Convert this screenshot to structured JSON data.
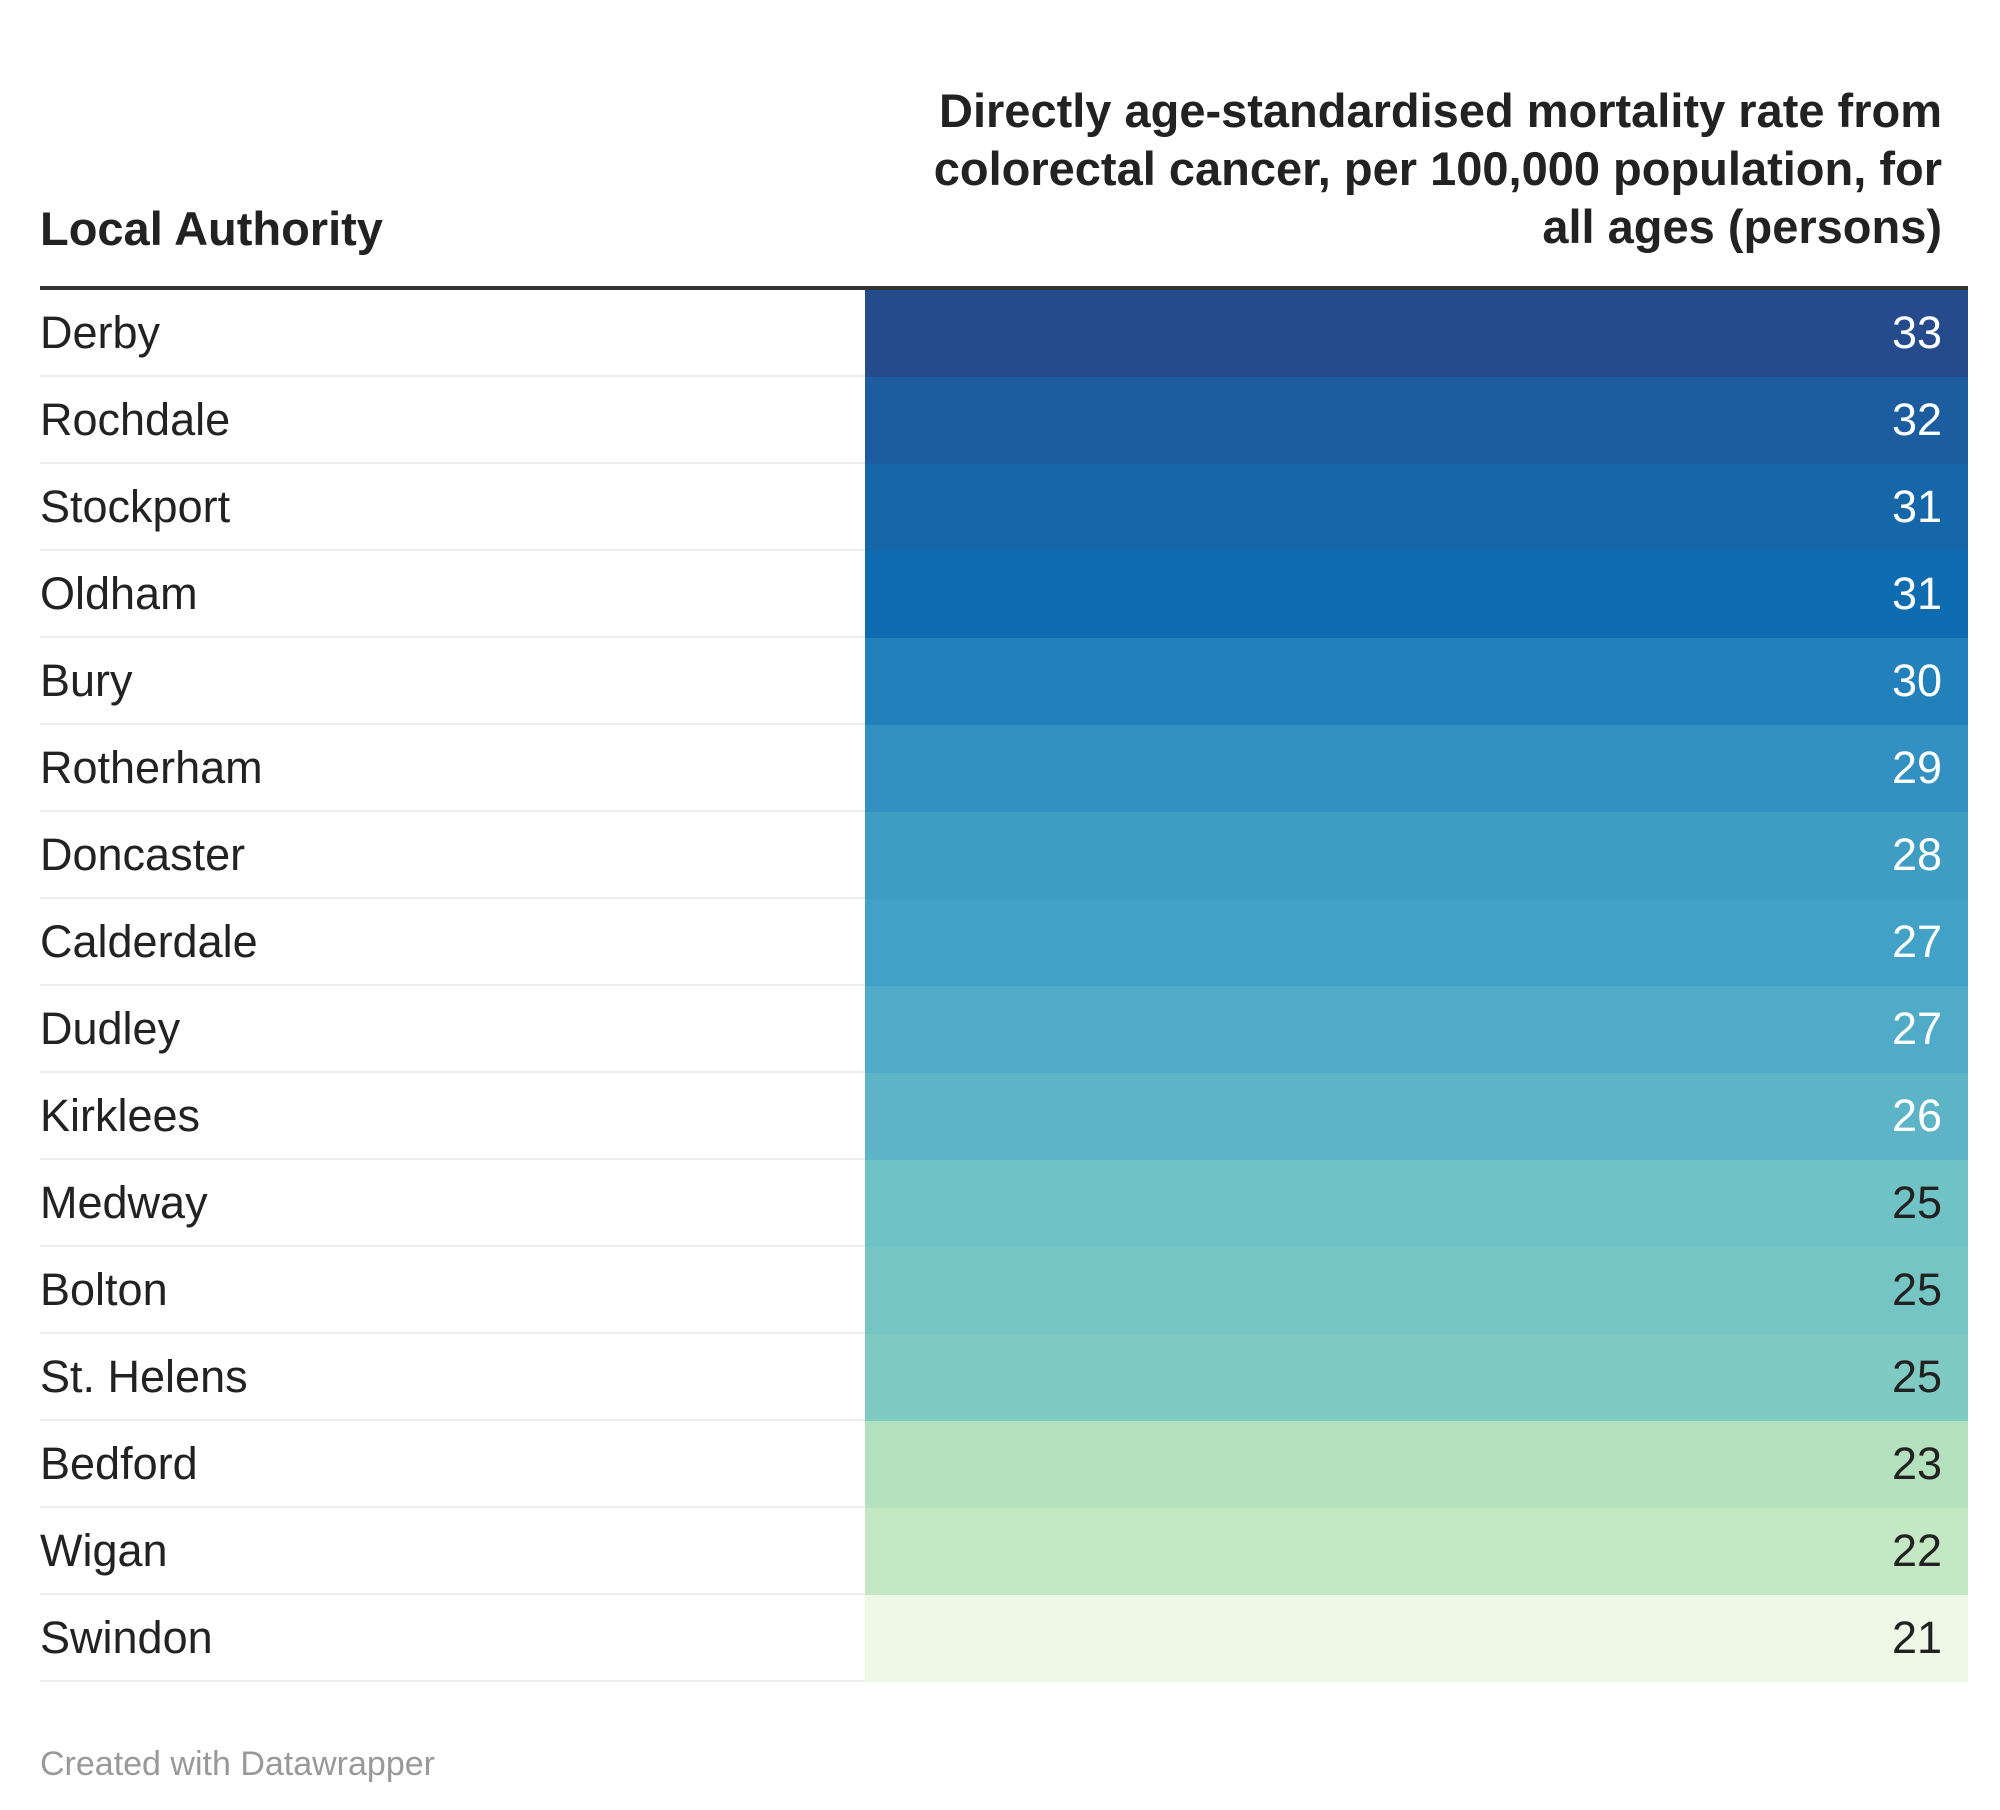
{
  "chart_data": {
    "type": "table",
    "columns": [
      "Local Authority",
      "Directly age-standardised mortality rate from colorectal cancer, per 100,000 population, for all ages (persons)"
    ],
    "categories": [
      "Derby",
      "Rochdale",
      "Stockport",
      "Oldham",
      "Bury",
      "Rotherham",
      "Doncaster",
      "Calderdale",
      "Dudley",
      "Kirklees",
      "Medway",
      "Bolton",
      "St. Helens",
      "Bedford",
      "Wigan",
      "Swindon"
    ],
    "values": [
      33,
      32,
      31,
      31,
      30,
      29,
      28,
      27,
      27,
      26,
      25,
      25,
      25,
      23,
      22,
      21
    ],
    "cell_colors": [
      "#264b8c",
      "#1c5d9f",
      "#1567aa",
      "#0f6cb0",
      "#2280ba",
      "#3390c2",
      "#3f9dc4",
      "#42a1c6",
      "#4fabc7",
      "#5db4c7",
      "#70c3c5",
      "#76c5c5",
      "#7fcbc3",
      "#b4e1bd",
      "#c3e8c3",
      "#eff7e6"
    ],
    "text_colors": [
      "#ffffff",
      "#ffffff",
      "#ffffff",
      "#ffffff",
      "#ffffff",
      "#ffffff",
      "#ffffff",
      "#ffffff",
      "#ffffff",
      "#ffffff",
      "#222222",
      "#222222",
      "#222222",
      "#222222",
      "#222222",
      "#222222"
    ]
  },
  "footer": {
    "credit": "Created with Datawrapper"
  }
}
